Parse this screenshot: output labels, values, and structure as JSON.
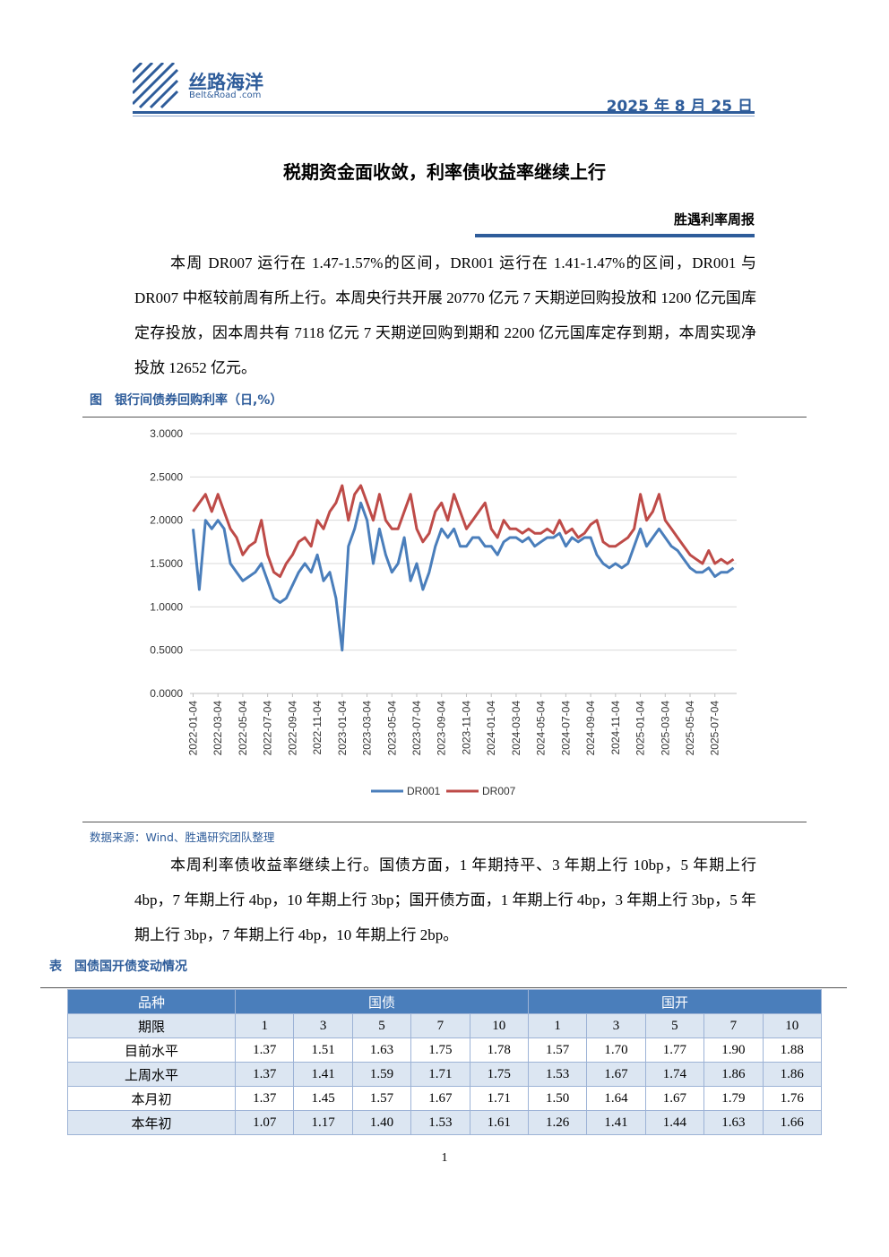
{
  "header": {
    "logo_name": "丝路海洋",
    "logo_sub": "Belt&Road .com",
    "date": "2025 年 8 月 25 日"
  },
  "title": "税期资金面收敛，利率债收益率继续上行",
  "column": "胜遇利率周报",
  "paragraph1": "本周 DR007 运行在 1.47-1.57%的区间，DR001 运行在 1.41-1.47%的区间，DR001 与 DR007 中枢较前周有所上行。本周央行共开展 20770 亿元 7 天期逆回购投放和 1200 亿元国库定存投放，因本周共有 7118 亿元 7 天期逆回购到期和 2200 亿元国库定存到期，本周实现净投放 12652 亿元。",
  "figure_caption": "图　银行间债券回购利率（日,%）",
  "chart_data": {
    "type": "line",
    "categories": [
      "2022-01-04",
      null,
      null,
      null,
      "2022-03-04",
      null,
      null,
      null,
      "2022-05-04",
      null,
      null,
      null,
      "2022-07-04",
      null,
      null,
      null,
      "2022-09-04",
      null,
      null,
      null,
      "2022-11-04",
      null,
      null,
      null,
      "2023-01-04",
      null,
      null,
      null,
      "2023-03-04",
      null,
      null,
      null,
      "2023-05-04",
      null,
      null,
      null,
      "2023-07-04",
      null,
      null,
      null,
      "2023-09-04",
      null,
      null,
      null,
      "2023-11-04",
      null,
      null,
      null,
      "2024-01-04",
      null,
      null,
      null,
      "2024-03-04",
      null,
      null,
      null,
      "2024-05-04",
      null,
      null,
      null,
      "2024-07-04",
      null,
      null,
      null,
      "2024-09-04",
      null,
      null,
      null,
      "2024-11-04",
      null,
      null,
      null,
      "2025-01-04",
      null,
      null,
      null,
      "2025-03-04",
      null,
      null,
      null,
      "2025-05-04",
      null,
      null,
      null,
      "2025-07-04",
      null,
      null,
      null
    ],
    "series": [
      {
        "name": "DR001",
        "color": "#4a7ebb",
        "values": [
          1.9,
          1.2,
          2.0,
          1.9,
          2.0,
          1.9,
          1.5,
          1.4,
          1.3,
          1.35,
          1.4,
          1.5,
          1.3,
          1.1,
          1.05,
          1.1,
          1.25,
          1.4,
          1.5,
          1.4,
          1.6,
          1.3,
          1.4,
          1.1,
          0.5,
          1.7,
          1.9,
          2.2,
          2.0,
          1.5,
          1.9,
          1.6,
          1.4,
          1.5,
          1.8,
          1.3,
          1.5,
          1.2,
          1.4,
          1.7,
          1.9,
          1.8,
          1.9,
          1.7,
          1.7,
          1.8,
          1.8,
          1.7,
          1.7,
          1.6,
          1.75,
          1.8,
          1.8,
          1.75,
          1.8,
          1.7,
          1.75,
          1.8,
          1.8,
          1.85,
          1.7,
          1.8,
          1.75,
          1.8,
          1.8,
          1.6,
          1.5,
          1.45,
          1.5,
          1.45,
          1.5,
          1.7,
          1.9,
          1.7,
          1.8,
          1.9,
          1.8,
          1.7,
          1.65,
          1.55,
          1.45,
          1.4,
          1.4,
          1.45,
          1.35,
          1.4,
          1.4,
          1.45
        ]
      },
      {
        "name": "DR007",
        "color": "#be4b48",
        "values": [
          2.1,
          2.2,
          2.3,
          2.1,
          2.3,
          2.1,
          1.9,
          1.8,
          1.6,
          1.7,
          1.75,
          2.0,
          1.6,
          1.4,
          1.35,
          1.5,
          1.6,
          1.75,
          1.8,
          1.7,
          2.0,
          1.9,
          2.1,
          2.2,
          2.4,
          2.0,
          2.3,
          2.4,
          2.2,
          2.0,
          2.3,
          2.0,
          1.9,
          1.9,
          2.1,
          2.3,
          1.9,
          1.75,
          1.85,
          2.1,
          2.2,
          2.0,
          2.3,
          2.1,
          1.9,
          2.0,
          2.1,
          2.2,
          1.9,
          1.8,
          2.0,
          1.9,
          1.9,
          1.85,
          1.9,
          1.85,
          1.85,
          1.9,
          1.85,
          2.0,
          1.85,
          1.9,
          1.8,
          1.85,
          1.95,
          2.0,
          1.75,
          1.7,
          1.7,
          1.75,
          1.8,
          1.9,
          2.3,
          2.0,
          2.1,
          2.3,
          2.0,
          1.9,
          1.8,
          1.7,
          1.6,
          1.55,
          1.5,
          1.65,
          1.5,
          1.55,
          1.5,
          1.55
        ]
      }
    ],
    "ylim": [
      0,
      3
    ],
    "yticks": [
      {
        "value": 0,
        "label": "0.0000"
      },
      {
        "value": 0.5,
        "label": "0.5000"
      },
      {
        "value": 1,
        "label": "1.0000"
      },
      {
        "value": 1.5,
        "label": "1.5000"
      },
      {
        "value": 2,
        "label": "2.0000"
      },
      {
        "value": 2.5,
        "label": "2.5000"
      },
      {
        "value": 3,
        "label": "3.0000"
      }
    ],
    "grid": true,
    "legend": "bottom"
  },
  "source": "数据来源：Wind、胜遇研究团队整理",
  "paragraph2": "本周利率债收益率继续上行。国债方面，1 年期持平、3 年期上行 10bp，5 年期上行 4bp，7 年期上行 4bp，10 年期上行 3bp；国开债方面，1 年期上行 4bp，3 年期上行 3bp，5 年期上行 3bp，7 年期上行 4bp，10 年期上行 2bp。",
  "table_caption": "表　国债国开债变动情况",
  "table": {
    "header": [
      "品种",
      "国债",
      "国开"
    ],
    "subheader": [
      "期限",
      "1",
      "3",
      "5",
      "7",
      "10",
      "1",
      "3",
      "5",
      "7",
      "10"
    ],
    "rows": [
      [
        "目前水平",
        "1.37",
        "1.51",
        "1.63",
        "1.75",
        "1.78",
        "1.57",
        "1.70",
        "1.77",
        "1.90",
        "1.88"
      ],
      [
        "上周水平",
        "1.37",
        "1.41",
        "1.59",
        "1.71",
        "1.75",
        "1.53",
        "1.67",
        "1.74",
        "1.86",
        "1.86"
      ],
      [
        "本月初",
        "1.37",
        "1.45",
        "1.57",
        "1.67",
        "1.71",
        "1.50",
        "1.64",
        "1.67",
        "1.79",
        "1.76"
      ],
      [
        "本年初",
        "1.07",
        "1.17",
        "1.40",
        "1.53",
        "1.61",
        "1.26",
        "1.41",
        "1.44",
        "1.63",
        "1.66"
      ]
    ]
  },
  "page_number": "1"
}
